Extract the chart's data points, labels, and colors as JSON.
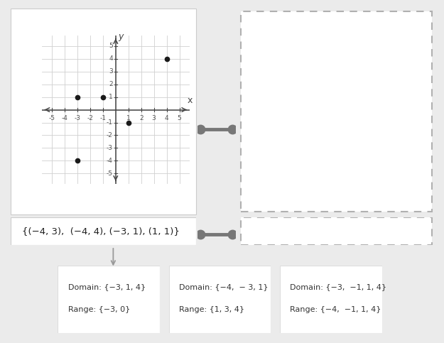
{
  "graph_points": [
    [
      -3,
      1
    ],
    [
      -1,
      1
    ],
    [
      1,
      -1
    ],
    [
      4,
      4
    ],
    [
      -3,
      -4
    ]
  ],
  "graph_xlim": [
    -5.8,
    5.8
  ],
  "graph_ylim": [
    -5.8,
    5.8
  ],
  "graph_ticks_x": [
    -5,
    -4,
    -3,
    -2,
    -1,
    1,
    2,
    3,
    4,
    5
  ],
  "graph_ticks_y": [
    -5,
    -4,
    -3,
    -2,
    -1,
    1,
    2,
    3,
    4,
    5
  ],
  "relation_text": "{(−4, 3),  (−4, 4), (−3, 1), (1, 1)}",
  "card1_domain": "Domain: {−3, 1, 4}",
  "card1_range": "Range: {−3, 0}",
  "card2_domain": "Domain: {−4,  − 3, 1}",
  "card2_range": "Range: {1, 3, 4}",
  "card3_domain": "Domain: {−3,  −1, 1, 4}",
  "card3_range": "Range: {−4,  −1, 1, 4}",
  "bg_color": "#ebebeb",
  "panel_color": "#ffffff",
  "dashed_box_color": "#b0b0b0",
  "point_color": "#1a1a1a",
  "grid_color": "#d0d0d0",
  "axis_color": "#444444",
  "handle_color": "#777777",
  "card_border_color": "#dddddd",
  "tick_label_color": "#555555"
}
